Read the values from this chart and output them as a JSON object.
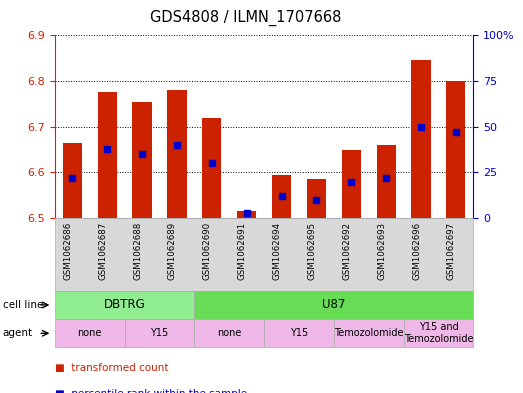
{
  "title": "GDS4808 / ILMN_1707668",
  "samples": [
    "GSM1062686",
    "GSM1062687",
    "GSM1062688",
    "GSM1062689",
    "GSM1062690",
    "GSM1062691",
    "GSM1062694",
    "GSM1062695",
    "GSM1062692",
    "GSM1062693",
    "GSM1062696",
    "GSM1062697"
  ],
  "red_values": [
    6.665,
    6.775,
    6.755,
    6.78,
    6.72,
    6.515,
    6.595,
    6.585,
    6.65,
    6.66,
    6.845,
    6.8
  ],
  "blue_values_pct": [
    22,
    38,
    35,
    40,
    30,
    3,
    12,
    10,
    20,
    22,
    50,
    47
  ],
  "ymin": 6.5,
  "ymax": 6.9,
  "yticks": [
    6.5,
    6.6,
    6.7,
    6.8,
    6.9
  ],
  "right_yticks": [
    0,
    25,
    50,
    75,
    100
  ],
  "right_yticklabels": [
    "0",
    "25",
    "50",
    "75",
    "100%"
  ],
  "bar_color": "#cc2200",
  "blue_color": "#0000cc",
  "bar_width": 0.55,
  "cell_line_groups": [
    {
      "label": "DBTRG",
      "start": 0,
      "end": 3,
      "color": "#90ee90"
    },
    {
      "label": "U87",
      "start": 4,
      "end": 11,
      "color": "#66dd55"
    }
  ],
  "agent_groups": [
    {
      "label": "none",
      "start": 0,
      "end": 1,
      "color": "#f0b8e8"
    },
    {
      "label": "Y15",
      "start": 2,
      "end": 3,
      "color": "#f0b8e8"
    },
    {
      "label": "none",
      "start": 4,
      "end": 5,
      "color": "#f0b8e8"
    },
    {
      "label": "Y15",
      "start": 6,
      "end": 7,
      "color": "#f0b8e8"
    },
    {
      "label": "Temozolomide",
      "start": 8,
      "end": 9,
      "color": "#f0b8e8"
    },
    {
      "label": "Y15 and\nTemozolomide",
      "start": 10,
      "end": 11,
      "color": "#f0b8e8"
    }
  ],
  "bg_color": "#ffffff",
  "grid_color": "#000000",
  "axis_color_left": "#cc2200",
  "axis_color_right": "#0000cc",
  "xtick_bg": "#d8d8d8"
}
